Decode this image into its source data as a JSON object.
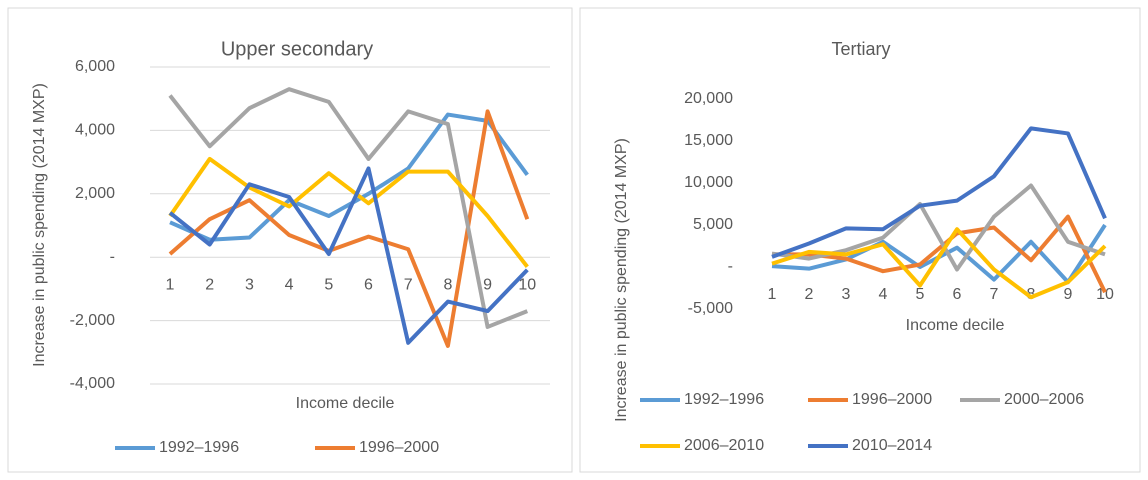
{
  "chart_data": [
    {
      "type": "line",
      "title": "Upper secondary",
      "x_label": "Income decile",
      "y_label": "Increase in public spending  (2014 MXP)",
      "categories": [
        "1",
        "2",
        "3",
        "4",
        "5",
        "6",
        "7",
        "8",
        "9",
        "10"
      ],
      "ylim": [
        -4000,
        6000
      ],
      "yticks": [
        {
          "value": -4000,
          "label": "-4,000"
        },
        {
          "value": -2000,
          "label": "-2,000"
        },
        {
          "value": 0,
          "label": "-"
        },
        {
          "value": 2000,
          "label": "2,000"
        },
        {
          "value": 4000,
          "label": "4,000"
        },
        {
          "value": 6000,
          "label": "6,000"
        }
      ],
      "grid": true,
      "series": [
        {
          "name": "1992–1996",
          "color": "#5B9BD5",
          "values": [
            1100,
            550,
            620,
            1800,
            1300,
            2000,
            2800,
            4500,
            4300,
            2600
          ]
        },
        {
          "name": "1996–2000",
          "color": "#ED7D31",
          "values": [
            100,
            1200,
            1800,
            700,
            200,
            650,
            250,
            -2800,
            4600,
            1200
          ]
        },
        {
          "color": "#A5A5A5",
          "values": [
            5100,
            3500,
            4700,
            5300,
            4900,
            3100,
            4600,
            4200,
            -2200,
            -1700
          ]
        },
        {
          "color": "#FFC000",
          "values": [
            1300,
            3100,
            2200,
            1600,
            2650,
            1700,
            2700,
            2700,
            1300,
            -300
          ]
        },
        {
          "color": "#4472C4",
          "values": [
            1400,
            400,
            2300,
            1900,
            100,
            2800,
            -2700,
            -1400,
            -1700,
            -400
          ]
        }
      ]
    },
    {
      "type": "line",
      "title": "Tertiary",
      "x_label": "Income decile",
      "y_label": "Increase in public spending  (2014 MXP)",
      "categories": [
        "1",
        "2",
        "3",
        "4",
        "5",
        "6",
        "7",
        "8",
        "9",
        "10"
      ],
      "ylim": [
        -5000,
        20000
      ],
      "yticks": [
        {
          "value": -5000,
          "label": "-5,000"
        },
        {
          "value": 0,
          "label": "-"
        },
        {
          "value": 5000,
          "label": "5,000"
        },
        {
          "value": 10000,
          "label": "10,000"
        },
        {
          "value": 15000,
          "label": "15,000"
        },
        {
          "value": 20000,
          "label": "20,000"
        }
      ],
      "grid": false,
      "series": [
        {
          "name": "1992–1996",
          "color": "#5B9BD5",
          "values": [
            100,
            -200,
            900,
            3000,
            0,
            2300,
            -1500,
            3000,
            -1800,
            5000
          ]
        },
        {
          "name": "1996–2000",
          "color": "#ED7D31",
          "values": [
            1500,
            1500,
            1000,
            -500,
            300,
            4000,
            4700,
            800,
            6000,
            -3000
          ]
        },
        {
          "name": "2000–2006",
          "color": "#A5A5A5",
          "values": [
            1600,
            1000,
            2000,
            3500,
            7500,
            -300,
            6000,
            9700,
            3000,
            1500
          ]
        },
        {
          "name": "2006–2010",
          "color": "#FFC000",
          "values": [
            400,
            1800,
            1500,
            2700,
            -2200,
            4500,
            -300,
            -3600,
            -1800,
            2500
          ]
        },
        {
          "name": "2010–2014",
          "color": "#4472C4",
          "values": [
            1200,
            2800,
            4600,
            4500,
            7300,
            7900,
            10800,
            16500,
            15900,
            5800
          ]
        }
      ]
    }
  ]
}
